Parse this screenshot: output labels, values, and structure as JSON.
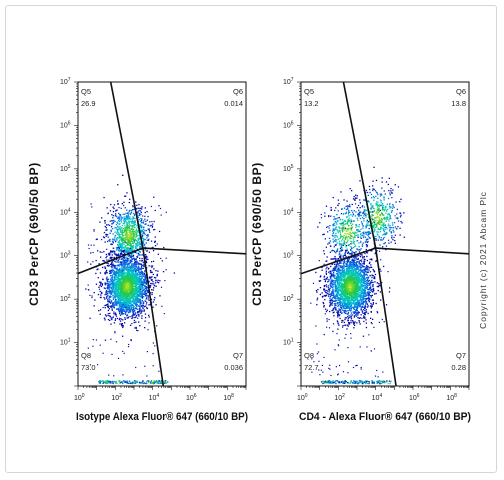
{
  "copyright": "Copyright (c) 2021 Abcam Plc",
  "chart_data": [
    {
      "type": "scatter",
      "ylabel": "CD3 PerCP (690/50 BP)",
      "xlabel": "Isotype Alexa Fluor® 647  (660/10 BP)",
      "xscale": "log",
      "yscale": "log",
      "xlim": [
        1,
        1000000000.0
      ],
      "ylim": [
        1,
        10000000.0
      ],
      "x_ticks": [
        "10^0",
        "10^2",
        "10^4",
        "10^6",
        "10^8"
      ],
      "y_ticks": [
        "10^1",
        "10^2",
        "10^3",
        "10^4",
        "10^5",
        "10^6",
        "10^7"
      ],
      "quadrants": [
        {
          "name": "Q5",
          "value": "26.9",
          "position": "top-left"
        },
        {
          "name": "Q6",
          "value": "0.014",
          "position": "top-right"
        },
        {
          "name": "Q8",
          "value": "73.0",
          "position": "bottom-left"
        },
        {
          "name": "Q7",
          "value": "0.036",
          "position": "bottom-right"
        }
      ],
      "gate_center": [
        3000,
        1500
      ],
      "populations": [
        {
          "x": 500,
          "y": 3000,
          "n": 900
        },
        {
          "x": 400,
          "y": 200,
          "n": 2400
        }
      ]
    },
    {
      "type": "scatter",
      "ylabel": "CD3 PerCP (690/50 BP)",
      "xlabel": "CD4 - Alexa Fluor® 647  (660/10 BP)",
      "xscale": "log",
      "yscale": "log",
      "xlim": [
        1,
        1000000000.0
      ],
      "ylim": [
        1,
        10000000.0
      ],
      "x_ticks": [
        "10^0",
        "10^2",
        "10^4",
        "10^6",
        "10^8"
      ],
      "y_ticks": [
        "10^1",
        "10^2",
        "10^3",
        "10^4",
        "10^5",
        "10^6",
        "10^7"
      ],
      "quadrants": [
        {
          "name": "Q5",
          "value": "13.2",
          "position": "top-left"
        },
        {
          "name": "Q6",
          "value": "13.8",
          "position": "top-right"
        },
        {
          "name": "Q8",
          "value": "72.7",
          "position": "bottom-left"
        },
        {
          "name": "Q7",
          "value": "0.28",
          "position": "bottom-right"
        }
      ],
      "gate_center": [
        10000,
        1500
      ],
      "populations": [
        {
          "x": 300,
          "y": 3500,
          "n": 420
        },
        {
          "x": 12000,
          "y": 8000,
          "n": 450
        },
        {
          "x": 400,
          "y": 200,
          "n": 2400
        }
      ]
    }
  ]
}
